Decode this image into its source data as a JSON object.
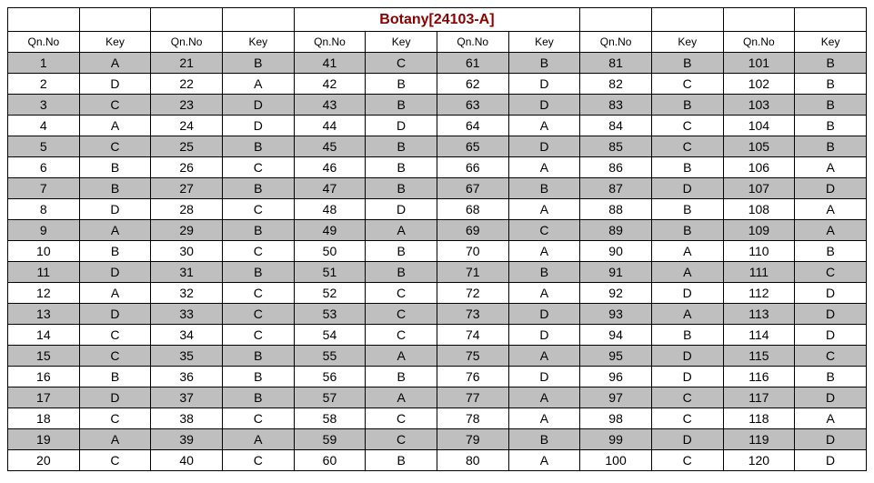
{
  "title": "Botany[24103-A]",
  "title_color": "#8b0000",
  "shade_color": "#bfbfbf",
  "border_color": "#000000",
  "background_color": "#ffffff",
  "font_family": "Arial",
  "title_fontsize": 16,
  "header_fontsize": 12,
  "cell_fontsize": 14,
  "col_header_qn": "Qn.No",
  "col_header_key": "Key",
  "num_column_pairs": 6,
  "num_rows": 20,
  "answers": {
    "1": "A",
    "2": "D",
    "3": "C",
    "4": "A",
    "5": "C",
    "6": "B",
    "7": "B",
    "8": "D",
    "9": "A",
    "10": "B",
    "11": "D",
    "12": "A",
    "13": "D",
    "14": "C",
    "15": "C",
    "16": "B",
    "17": "D",
    "18": "C",
    "19": "A",
    "20": "C",
    "21": "B",
    "22": "A",
    "23": "D",
    "24": "D",
    "25": "B",
    "26": "C",
    "27": "B",
    "28": "C",
    "29": "B",
    "30": "C",
    "31": "B",
    "32": "C",
    "33": "C",
    "34": "C",
    "35": "B",
    "36": "B",
    "37": "B",
    "38": "C",
    "39": "A",
    "40": "C",
    "41": "C",
    "42": "B",
    "43": "B",
    "44": "D",
    "45": "B",
    "46": "B",
    "47": "B",
    "48": "D",
    "49": "A",
    "50": "B",
    "51": "B",
    "52": "C",
    "53": "C",
    "54": "C",
    "55": "A",
    "56": "B",
    "57": "A",
    "58": "C",
    "59": "C",
    "60": "B",
    "61": "B",
    "62": "D",
    "63": "D",
    "64": "A",
    "65": "D",
    "66": "A",
    "67": "B",
    "68": "A",
    "69": "C",
    "70": "A",
    "71": "B",
    "72": "A",
    "73": "D",
    "74": "D",
    "75": "A",
    "76": "D",
    "77": "A",
    "78": "A",
    "79": "B",
    "80": "A",
    "81": "B",
    "82": "C",
    "83": "B",
    "84": "C",
    "85": "C",
    "86": "B",
    "87": "D",
    "88": "B",
    "89": "B",
    "90": "A",
    "91": "A",
    "92": "D",
    "93": "A",
    "94": "B",
    "95": "D",
    "96": "D",
    "97": "C",
    "98": "C",
    "99": "D",
    "100": "C",
    "101": "B",
    "102": "B",
    "103": "B",
    "104": "B",
    "105": "B",
    "106": "A",
    "107": "D",
    "108": "A",
    "109": "A",
    "110": "B",
    "111": "C",
    "112": "D",
    "113": "D",
    "114": "D",
    "115": "C",
    "116": "B",
    "117": "D",
    "118": "A",
    "119": "D",
    "120": "D"
  }
}
